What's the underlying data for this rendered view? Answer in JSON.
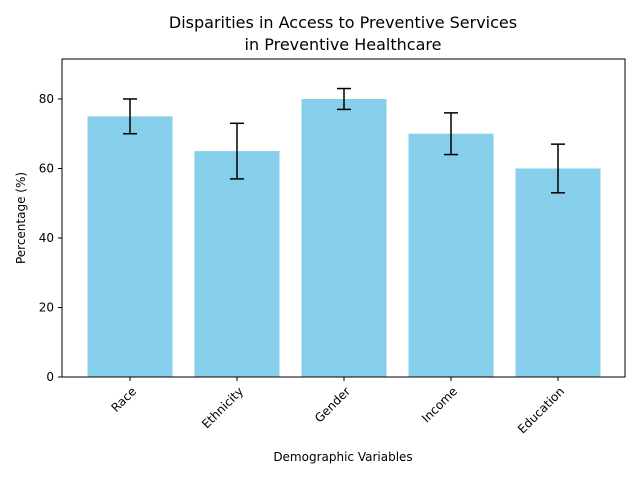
{
  "chart_data": {
    "type": "bar",
    "title_lines": [
      "Disparities in Access to Preventive Services",
      "in Preventive Healthcare"
    ],
    "xlabel": "Demographic Variables",
    "ylabel": "Percentage (%)",
    "categories": [
      "Race",
      "Ethnicity",
      "Gender",
      "Income",
      "Education"
    ],
    "values": [
      75,
      65,
      80,
      70,
      60
    ],
    "error_low": [
      70,
      57,
      77,
      64,
      53
    ],
    "error_high": [
      80,
      73,
      83,
      76,
      67
    ],
    "ylim": [
      0,
      91.5
    ],
    "yticks": [
      0,
      20,
      40,
      60,
      80
    ],
    "ytick_labels": [
      "0",
      "20",
      "40",
      "60",
      "80"
    ],
    "bar_color": "#87ceeb",
    "error_color": "#000000",
    "grid": false
  }
}
